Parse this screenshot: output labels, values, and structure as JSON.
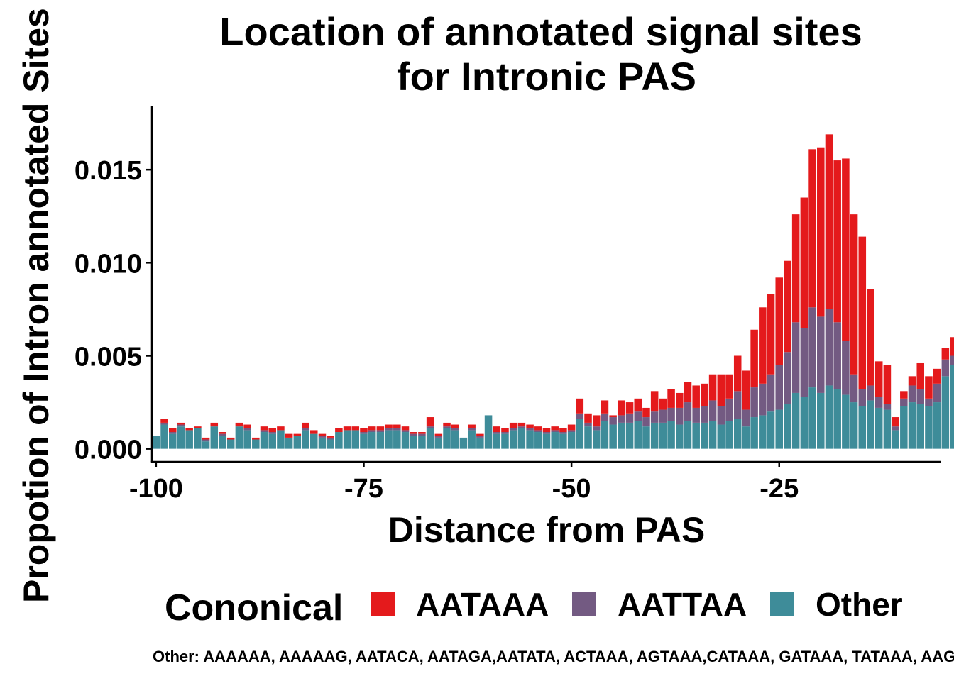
{
  "chart_data": {
    "type": "bar",
    "stacked": true,
    "title": [
      "Location of annotated signal sites",
      "for Intronic PAS"
    ],
    "xlabel": "Distance from PAS",
    "ylabel": "Propotion of Intron annotated Sites",
    "xlim": [
      -100.5,
      -5.5
    ],
    "ylim": [
      -0.0007,
      0.0184
    ],
    "x_ticks": [
      -100,
      -75,
      -50,
      -25
    ],
    "x_tick_labels": [
      "-100",
      "-75",
      "-50",
      "-25"
    ],
    "y_ticks": [
      0,
      0.005,
      0.01,
      0.015
    ],
    "y_tick_labels": [
      "0.000",
      "0.005",
      "0.010",
      "0.015"
    ],
    "legend": {
      "title": "Cononical",
      "position": "bottom"
    },
    "caption": "Other: AAAAAA, AAAAAG, AATACA, AATAGA,AATATA, ACTAAA, AGTAAA,CATAAA, GATAAA, TATAAA, AAGAAA",
    "series": [
      {
        "name": "Other",
        "color": "#3E8C99",
        "values": [
          0.0007,
          0.0013,
          0.0008,
          0.0012,
          0.001,
          0.0011,
          0.0004,
          0.0012,
          0.0007,
          0.0005,
          0.0012,
          0.001,
          0.0005,
          0.0009,
          0.0008,
          0.001,
          0.0006,
          0.0007,
          0.001,
          0.0008,
          0.0006,
          0.0005,
          0.0009,
          0.001,
          0.001,
          0.0008,
          0.0009,
          0.0009,
          0.001,
          0.001,
          0.0009,
          0.0007,
          0.0007,
          0.0011,
          0.0006,
          0.0011,
          0.001,
          0.0006,
          0.001,
          0.0006,
          0.0018,
          0.0008,
          0.0008,
          0.001,
          0.0011,
          0.001,
          0.0009,
          0.0008,
          0.0009,
          0.0008,
          0.0009,
          0.0016,
          0.0012,
          0.001,
          0.0015,
          0.0013,
          0.0014,
          0.0014,
          0.0015,
          0.0012,
          0.0014,
          0.0014,
          0.0015,
          0.0013,
          0.0015,
          0.0014,
          0.0014,
          0.0015,
          0.0013,
          0.0015,
          0.0016,
          0.0012,
          0.0017,
          0.0018,
          0.002,
          0.0021,
          0.0024,
          0.003,
          0.0028,
          0.0033,
          0.003,
          0.0034,
          0.0032,
          0.0029,
          0.0025,
          0.0023,
          0.0026,
          0.0022,
          0.0021,
          0.001,
          0.0023,
          0.0025,
          0.0024,
          0.0023,
          0.0025,
          0.0039,
          0.0045
        ]
      },
      {
        "name": "AATTAA",
        "color": "#735A82",
        "values": [
          0.0,
          0.0001,
          0.0001,
          0.0001,
          0.0,
          0.0,
          0.0001,
          0.0,
          0.0001,
          0.0,
          0.0,
          0.0001,
          0.0,
          0.0001,
          0.0001,
          0.0,
          0.0,
          0.0,
          0.0001,
          0.0,
          0.0001,
          0.0001,
          0.0,
          0.0,
          0.0,
          0.0001,
          0.0001,
          0.0001,
          0.0001,
          0.0001,
          0.0001,
          0.0001,
          0.0001,
          0.0001,
          0.0001,
          0.0001,
          0.0001,
          0.0,
          0.0001,
          0.0001,
          0.0,
          0.0001,
          0.0001,
          0.0001,
          0.0001,
          0.0001,
          0.0001,
          0.0001,
          0.0001,
          0.0001,
          0.0001,
          0.0003,
          0.0002,
          0.0002,
          0.0004,
          0.0004,
          0.0004,
          0.0005,
          0.0005,
          0.0005,
          0.0006,
          0.0007,
          0.0007,
          0.0009,
          0.001,
          0.0008,
          0.0009,
          0.0011,
          0.001,
          0.0012,
          0.0015,
          0.0009,
          0.0016,
          0.0017,
          0.002,
          0.0024,
          0.0028,
          0.0038,
          0.0037,
          0.0043,
          0.0041,
          0.0041,
          0.0036,
          0.0029,
          0.0015,
          0.0009,
          0.0008,
          0.0006,
          0.0003,
          0.0002,
          0.0004,
          0.0009,
          0.0008,
          0.0004,
          0.001,
          0.0009,
          0.0005
        ]
      },
      {
        "name": "AATAAA",
        "color": "#E41A1C",
        "values": [
          0.0,
          0.0002,
          0.0002,
          0.0001,
          0.0001,
          0.0001,
          0.0001,
          0.0002,
          0.0001,
          0.0001,
          0.0002,
          0.0002,
          0.0001,
          0.0002,
          0.0002,
          0.0002,
          0.0002,
          0.0001,
          0.0003,
          0.0002,
          0.0001,
          0.0001,
          0.0002,
          0.0002,
          0.0002,
          0.0002,
          0.0002,
          0.0002,
          0.0002,
          0.0002,
          0.0002,
          0.0001,
          0.0001,
          0.0005,
          0.0001,
          0.0002,
          0.0002,
          0.0,
          0.0002,
          0.0001,
          0.0,
          0.0003,
          0.0002,
          0.0003,
          0.0002,
          0.0002,
          0.0002,
          0.0002,
          0.0002,
          0.0002,
          0.0003,
          0.0008,
          0.0005,
          0.0006,
          0.0007,
          0.0001,
          0.0008,
          0.0006,
          0.0007,
          0.0005,
          0.0011,
          0.0006,
          0.001,
          0.0008,
          0.0011,
          0.0012,
          0.0012,
          0.0014,
          0.0017,
          0.0013,
          0.0019,
          0.0021,
          0.0031,
          0.0041,
          0.0043,
          0.0047,
          0.0049,
          0.0058,
          0.007,
          0.0085,
          0.0091,
          0.0094,
          0.0087,
          0.0098,
          0.0086,
          0.0082,
          0.0052,
          0.0019,
          0.0021,
          0.0005,
          0.0004,
          0.0005,
          0.0014,
          0.0012,
          0.0008,
          0.0006,
          0.001
        ]
      }
    ]
  }
}
